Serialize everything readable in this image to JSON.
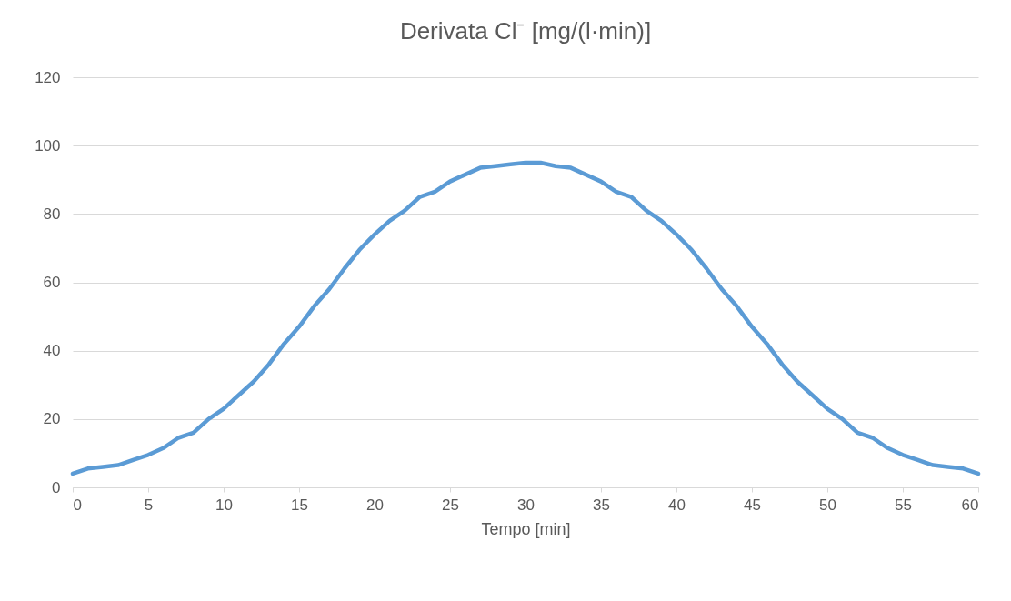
{
  "chart_data": {
    "type": "line",
    "title": "Derivata Cl⁻ [mg/(l·min)]",
    "xlabel": "Tempo [min]",
    "x": [
      0,
      1,
      2,
      3,
      4,
      5,
      6,
      7,
      8,
      9,
      10,
      11,
      12,
      13,
      14,
      15,
      16,
      17,
      18,
      19,
      20,
      21,
      22,
      23,
      24,
      25,
      26,
      27,
      28,
      29,
      30,
      31,
      32,
      33,
      34,
      35,
      36,
      37,
      38,
      39,
      40,
      41,
      42,
      43,
      44,
      45,
      46,
      47,
      48,
      49,
      50,
      51,
      52,
      53,
      54,
      55,
      56,
      57,
      58,
      59,
      60
    ],
    "series": [
      {
        "color": "#5b9bd5",
        "values": [
          4,
          5.5,
          6,
          6.5,
          8,
          9.5,
          11.5,
          14.5,
          16,
          20,
          23,
          27,
          31,
          36,
          42,
          47,
          53,
          58,
          64,
          69.5,
          74,
          78,
          81,
          85,
          86.5,
          89.5,
          91.5,
          93.5,
          94,
          94.5,
          95,
          95,
          94,
          93.5,
          91.5,
          89.5,
          86.5,
          85,
          81,
          78,
          74,
          69.5,
          64,
          58,
          53,
          47,
          42,
          36,
          31,
          27,
          23,
          20,
          16,
          14.5,
          11.5,
          9.5,
          8,
          6.5,
          6,
          5.5,
          4
        ]
      }
    ],
    "xlim": [
      0,
      60
    ],
    "xticks": [
      0,
      5,
      10,
      15,
      20,
      25,
      30,
      35,
      40,
      45,
      50,
      55,
      60
    ],
    "ylim": [
      0,
      120
    ],
    "yticks": [
      0,
      20,
      40,
      60,
      80,
      100,
      120
    ],
    "grid": "y",
    "marker": "none",
    "line_style": "solid"
  }
}
